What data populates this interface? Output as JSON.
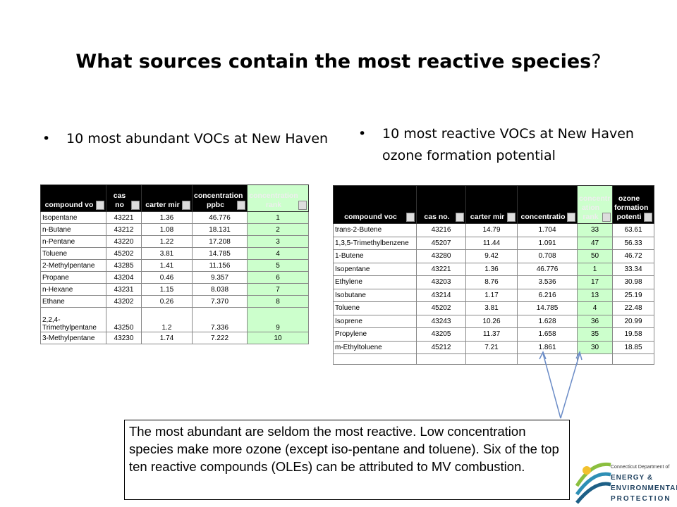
{
  "title": "What sources contain the most reactive species",
  "title_end": "?",
  "bullets": [
    "10 most abundant VOCs at New Haven",
    "10 most reactive VOCs at New Haven ozone formation potential"
  ],
  "table1": {
    "headers": [
      "compound vo",
      "cas no",
      "carter mir",
      "concentration ppbc",
      "concentration rank"
    ],
    "rows": [
      [
        "Isopentane",
        "43221",
        "1.36",
        "46.776",
        "1"
      ],
      [
        "n-Butane",
        "43212",
        "1.08",
        "18.131",
        "2"
      ],
      [
        "n-Pentane",
        "43220",
        "1.22",
        "17.208",
        "3"
      ],
      [
        "Toluene",
        "45202",
        "3.81",
        "14.785",
        "4"
      ],
      [
        "2-Methylpentane",
        "43285",
        "1.41",
        "11.156",
        "5"
      ],
      [
        "Propane",
        "43204",
        "0.46",
        "9.357",
        "6"
      ],
      [
        "n-Hexane",
        "43231",
        "1.15",
        "8.038",
        "7"
      ],
      [
        "Ethane",
        "43202",
        "0.26",
        "7.370",
        "8"
      ],
      [
        "2,2,4-Trimethylpentane",
        "43250",
        "1.2",
        "7.336",
        "9"
      ],
      [
        "3-Methylpentane",
        "43230",
        "1.74",
        "7.222",
        "10"
      ]
    ]
  },
  "table2": {
    "headers": [
      "compound voc",
      "cas no.",
      "carter mir",
      "concentratio",
      "concentr ation rank",
      "ozone formation potenti"
    ],
    "rows": [
      [
        "trans-2-Butene",
        "43216",
        "14.79",
        "1.704",
        "33",
        "63.61"
      ],
      [
        "1,3,5-Trimethylbenzene",
        "45207",
        "11.44",
        "1.091",
        "47",
        "56.33"
      ],
      [
        "1-Butene",
        "43280",
        "9.42",
        "0.708",
        "50",
        "46.72"
      ],
      [
        "Isopentane",
        "43221",
        "1.36",
        "46.776",
        "1",
        "33.34"
      ],
      [
        "Ethylene",
        "43203",
        "8.76",
        "3.536",
        "17",
        "30.98"
      ],
      [
        "Isobutane",
        "43214",
        "1.17",
        "6.216",
        "13",
        "25.19"
      ],
      [
        "Toluene",
        "45202",
        "3.81",
        "14.785",
        "4",
        "22.48"
      ],
      [
        "Isoprene",
        "43243",
        "10.26",
        "1.628",
        "36",
        "20.99"
      ],
      [
        "Propylene",
        "43205",
        "11.37",
        "1.658",
        "35",
        "19.58"
      ],
      [
        "m-Ethyltoluene",
        "45212",
        "7.21",
        "1.861",
        "30",
        "18.85"
      ]
    ]
  },
  "note": "The most abundant are seldom the most reactive.  Low concentration species make more ozone (except iso-pentane and toluene).  Six of the top ten reactive compounds (OLEs) can  be attributed to MV combustion.",
  "logo": {
    "line1": "Connecticut Department of",
    "line2": "ENERGY &",
    "line3": "ENVIRONMENTAL",
    "line4": "PROTECTION"
  }
}
